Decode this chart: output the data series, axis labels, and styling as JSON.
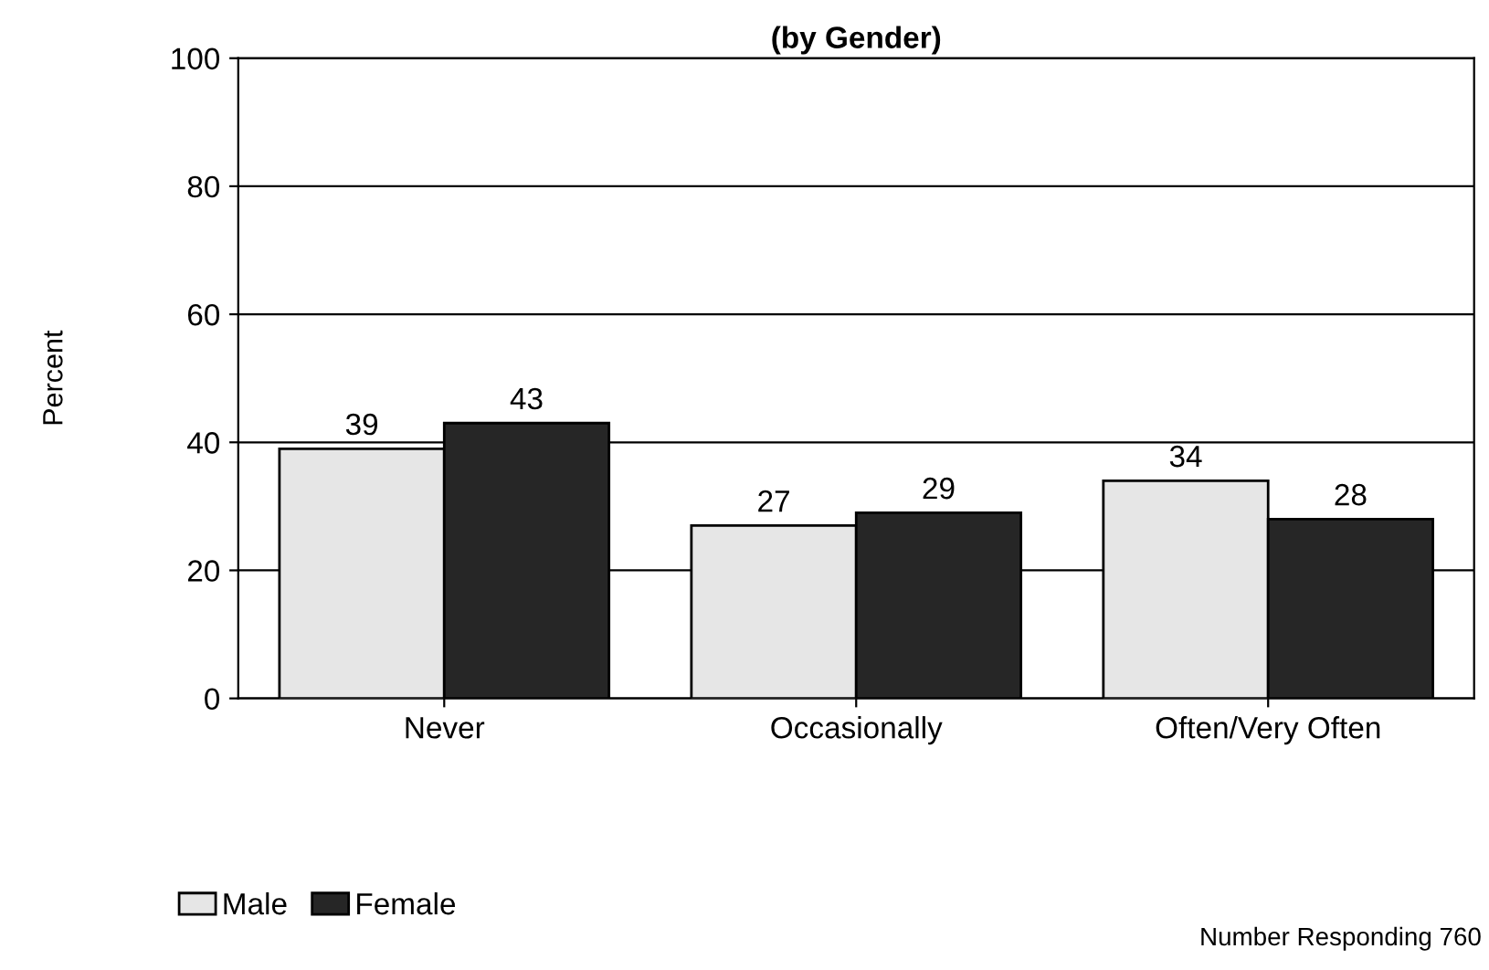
{
  "chart_data": {
    "type": "bar",
    "title": "(by Gender)",
    "ylabel": "Percent",
    "categories": [
      "Never",
      "Occasionally",
      "Often/Very Often"
    ],
    "series": [
      {
        "name": "Male",
        "color": "#e6e6e6",
        "values": [
          39,
          27,
          34
        ]
      },
      {
        "name": "Female",
        "color": "#262626",
        "values": [
          43,
          29,
          28
        ]
      }
    ],
    "ylim": [
      0,
      100
    ],
    "yticks": [
      0,
      20,
      40,
      60,
      80,
      100
    ],
    "grid": "y",
    "legend": "bottom left",
    "data_labels": true,
    "annotations": [
      "Number Responding 760"
    ]
  }
}
